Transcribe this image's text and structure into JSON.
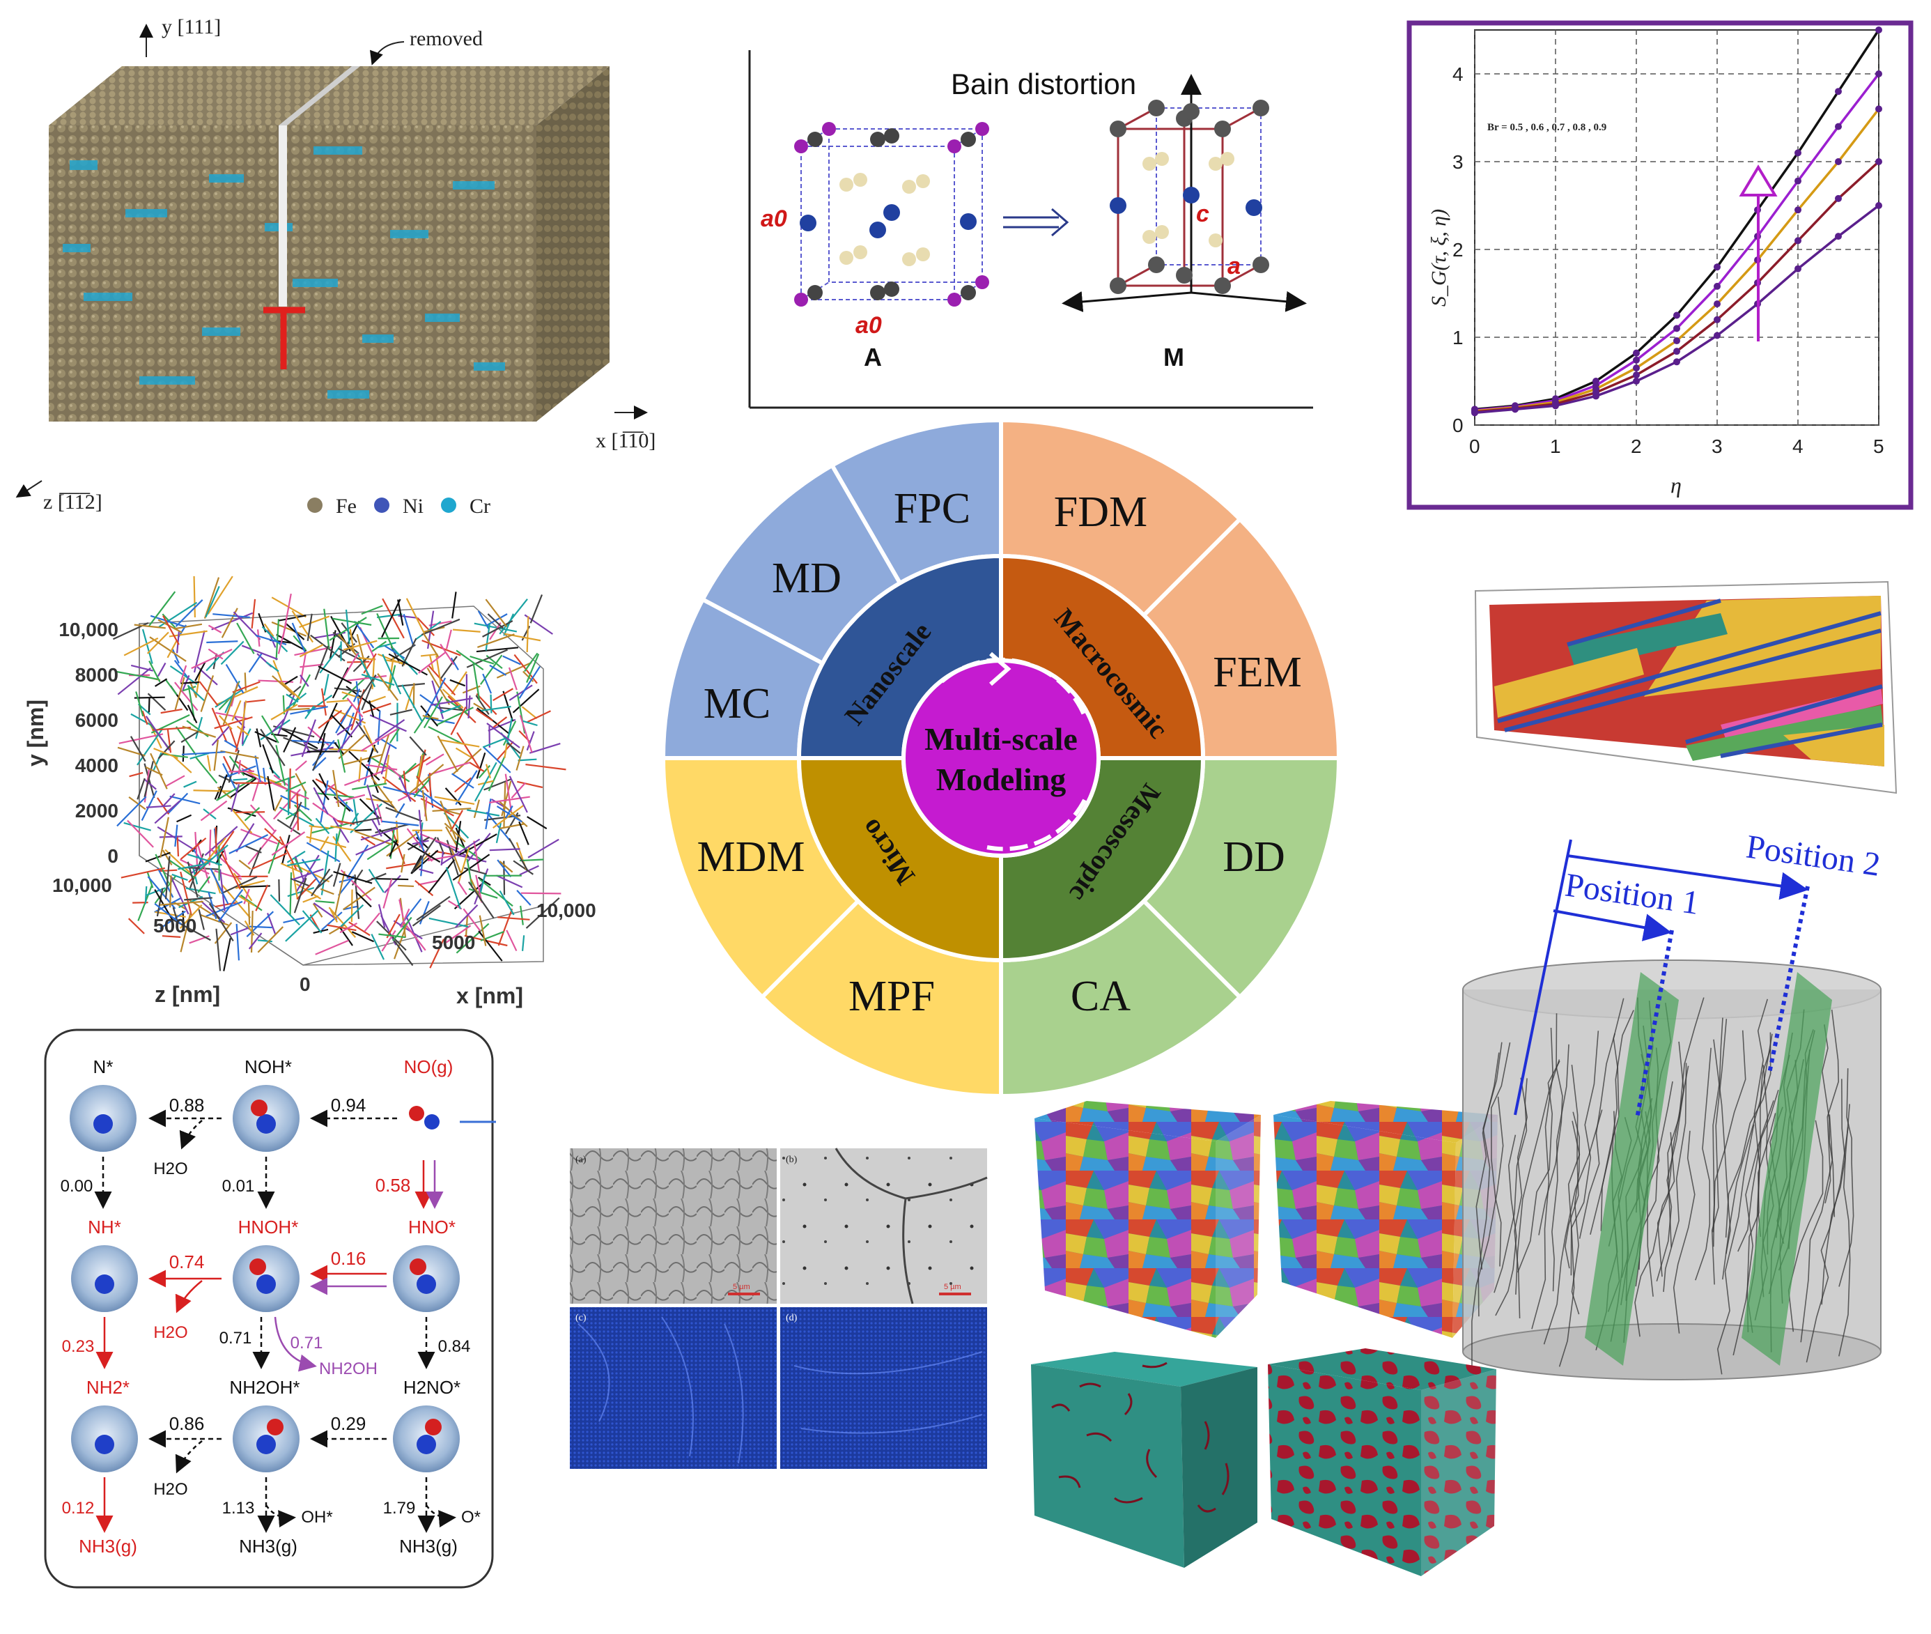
{
  "crystal": {
    "axis_y": "y [111]",
    "axis_x": "x [1̅1̅0]",
    "axis_z": "z [̅1̅1̅2]",
    "note": "removed",
    "legend": [
      {
        "label": "Fe",
        "color": "#8a7e62"
      },
      {
        "label": "Ni",
        "color": "#3f55b8"
      },
      {
        "label": "Cr",
        "color": "#1fa7cf"
      }
    ]
  },
  "bain": {
    "title": "Bain distortion",
    "left_label": "A",
    "right_label": "M",
    "a0_side": "a0",
    "a0_bottom": "a0",
    "c_label": "c",
    "a_label": "a"
  },
  "chart_data": {
    "type": "line",
    "title": "",
    "xlabel": "η",
    "ylabel": "S_G(τ, ξ, η)",
    "annotation": "Br = 0.5 , 0.6 , 0.7 , 0.8 , 0.9",
    "xlim": [
      0,
      5
    ],
    "ylim": [
      0,
      4.5
    ],
    "xticks": [
      0,
      1,
      2,
      3,
      4,
      5
    ],
    "yticks": [
      0,
      1,
      2,
      3,
      4
    ],
    "grid": true,
    "series": [
      {
        "name": "Br 0.9",
        "color": "#111111",
        "x": [
          0,
          0.5,
          1,
          1.5,
          2,
          2.5,
          3,
          3.5,
          4,
          4.5,
          5
        ],
        "y": [
          0.18,
          0.22,
          0.3,
          0.5,
          0.82,
          1.25,
          1.8,
          2.45,
          3.1,
          3.8,
          4.5
        ]
      },
      {
        "name": "Br 0.8",
        "color": "#9b1fd0",
        "x": [
          0,
          0.5,
          1,
          1.5,
          2,
          2.5,
          3,
          3.5,
          4,
          4.5,
          5
        ],
        "y": [
          0.17,
          0.21,
          0.28,
          0.45,
          0.74,
          1.1,
          1.58,
          2.15,
          2.78,
          3.4,
          4.0
        ]
      },
      {
        "name": "Br 0.7",
        "color": "#d59a14",
        "x": [
          0,
          0.5,
          1,
          1.5,
          2,
          2.5,
          3,
          3.5,
          4,
          4.5,
          5
        ],
        "y": [
          0.16,
          0.2,
          0.26,
          0.41,
          0.65,
          0.96,
          1.38,
          1.88,
          2.45,
          3.0,
          3.6
        ]
      },
      {
        "name": "Br 0.6",
        "color": "#8c1c2a",
        "x": [
          0,
          0.5,
          1,
          1.5,
          2,
          2.5,
          3,
          3.5,
          4,
          4.5,
          5
        ],
        "y": [
          0.15,
          0.19,
          0.24,
          0.37,
          0.57,
          0.84,
          1.2,
          1.62,
          2.1,
          2.58,
          3.0
        ]
      },
      {
        "name": "Br 0.5",
        "color": "#5a1f8c",
        "x": [
          0,
          0.5,
          1,
          1.5,
          2,
          2.5,
          3,
          3.5,
          4,
          4.5,
          5
        ],
        "y": [
          0.14,
          0.18,
          0.22,
          0.33,
          0.5,
          0.72,
          1.02,
          1.38,
          1.78,
          2.15,
          2.5
        ]
      }
    ]
  },
  "network": {
    "y_label": "y [nm]",
    "z_label": "z [nm]",
    "x_label": "x [nm]",
    "y_ticks": [
      "10,000",
      "8000",
      "6000",
      "4000",
      "2000",
      "0"
    ],
    "z_ticks": [
      "10,000",
      "5000",
      "0"
    ],
    "x_ticks": [
      "5000",
      "10,000"
    ]
  },
  "wheel": {
    "center": "Multi-scale Modeling",
    "center_line1": "Multi-scale",
    "center_line2": "Modeling",
    "scales": {
      "nano": "Nanoscale",
      "macro": "Macrocosmic",
      "meso": "Mesoscopic",
      "micro": "Micro"
    },
    "methods": {
      "fpc": "FPC",
      "md": "MD",
      "mc": "MC",
      "fdm": "FDM",
      "fem": "FEM",
      "dd": "DD",
      "ca": "CA",
      "mdm": "MDM",
      "mpf": "MPF"
    },
    "colors": {
      "nano_outer": "#8eaadb",
      "nano_inner": "#2f5597",
      "macro_outer": "#f4b183",
      "macro_inner": "#c55a11",
      "meso_outer": "#a9d18e",
      "meso_inner": "#548235",
      "micro_outer": "#ffd966",
      "micro_inner": "#bf9000",
      "center": "#c51bd0"
    }
  },
  "reaction": {
    "species": {
      "n_star": "N*",
      "noh_star": "NOH*",
      "no_g": "NO(g)",
      "nh_star": "NH*",
      "hnoh_star": "HNOH*",
      "hno_star": "HNO*",
      "nh2_star": "NH2*",
      "nh2oh_star": "NH2OH*",
      "h2no_star": "H2NO*",
      "nh3_1": "NH3(g)",
      "nh3_2": "NH3(g)",
      "nh3_3": "NH3(g)"
    },
    "side_products": {
      "h2o_1": "H2O",
      "h2o_2": "H2O",
      "h2o_3": "H2O",
      "nh2oh": "NH2OH",
      "oh": "OH*",
      "o": "O*"
    },
    "energies": {
      "e094": "0.94",
      "e088": "0.88",
      "e000": "0.00",
      "e001": "0.01",
      "e058": "0.58",
      "e074": "0.74",
      "e016": "0.16",
      "e023": "0.23",
      "e071a": "0.71",
      "e071b": "0.71",
      "e084": "0.84",
      "e086": "0.86",
      "e029": "0.29",
      "e012": "0.12",
      "e113": "1.13",
      "e179": "1.79"
    }
  },
  "micrograph": {
    "a": "(a)",
    "b": "(b)",
    "c": "(c)",
    "d": "(d)",
    "scale_a": "5 µm",
    "scale_b": "5 µm"
  },
  "specimen": {
    "position1": "Position 1",
    "position2": "Position 2"
  }
}
